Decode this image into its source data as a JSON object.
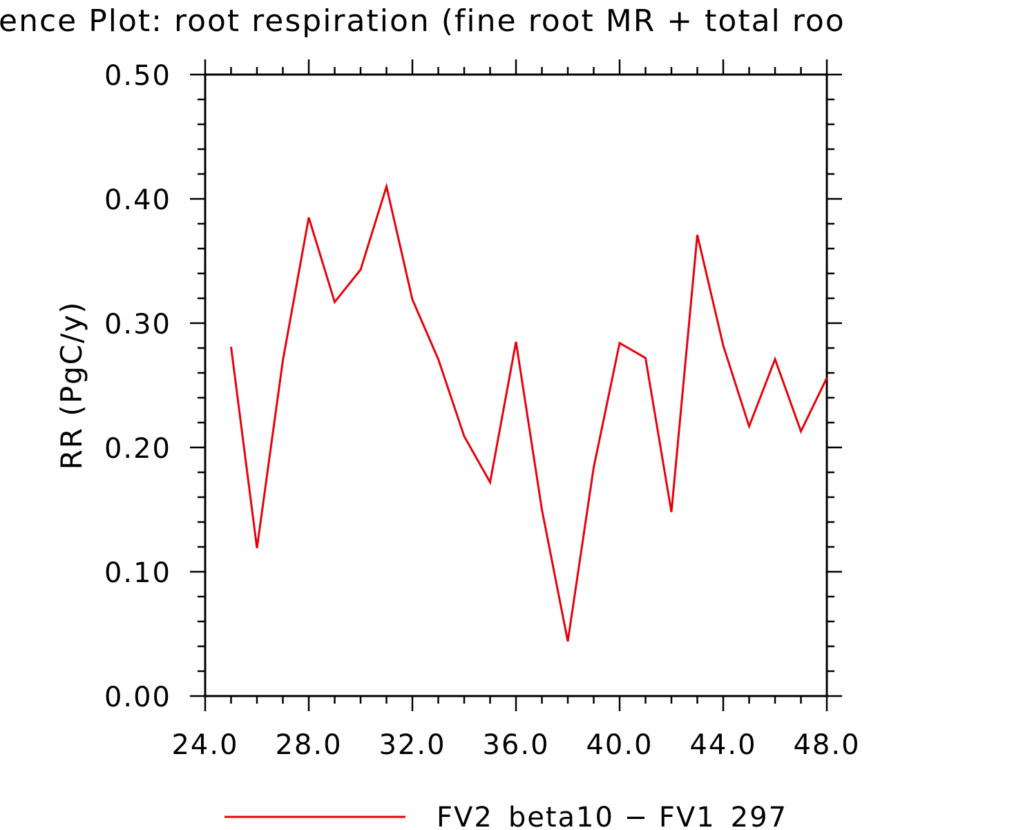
{
  "chart_data": {
    "type": "line",
    "title": "ence Plot: root respiration (fine root MR + total roo",
    "xlabel": "",
    "ylabel": "RR  (PgC/y)",
    "xlim": [
      24,
      48
    ],
    "ylim": [
      0,
      0.5
    ],
    "x_ticks": [
      "24.0",
      "28.0",
      "32.0",
      "36.0",
      "40.0",
      "44.0",
      "48.0"
    ],
    "y_ticks": [
      "0.00",
      "0.10",
      "0.20",
      "0.30",
      "0.40",
      "0.50"
    ],
    "grid": false,
    "legend_position": "bottom",
    "series": [
      {
        "name": "FV2_beta10 − FV1_297",
        "color": "#e8000b",
        "x": [
          25,
          26,
          27,
          28,
          29,
          30,
          31,
          32,
          33,
          34,
          35,
          36,
          37,
          38,
          39,
          40,
          41,
          42,
          43,
          44,
          45,
          46,
          47,
          48
        ],
        "values": [
          0.281,
          0.119,
          0.27,
          0.385,
          0.317,
          0.343,
          0.41,
          0.319,
          0.271,
          0.209,
          0.172,
          0.285,
          0.15,
          0.044,
          0.184,
          0.284,
          0.272,
          0.148,
          0.371,
          0.282,
          0.217,
          0.271,
          0.213,
          0.256
        ]
      }
    ]
  }
}
